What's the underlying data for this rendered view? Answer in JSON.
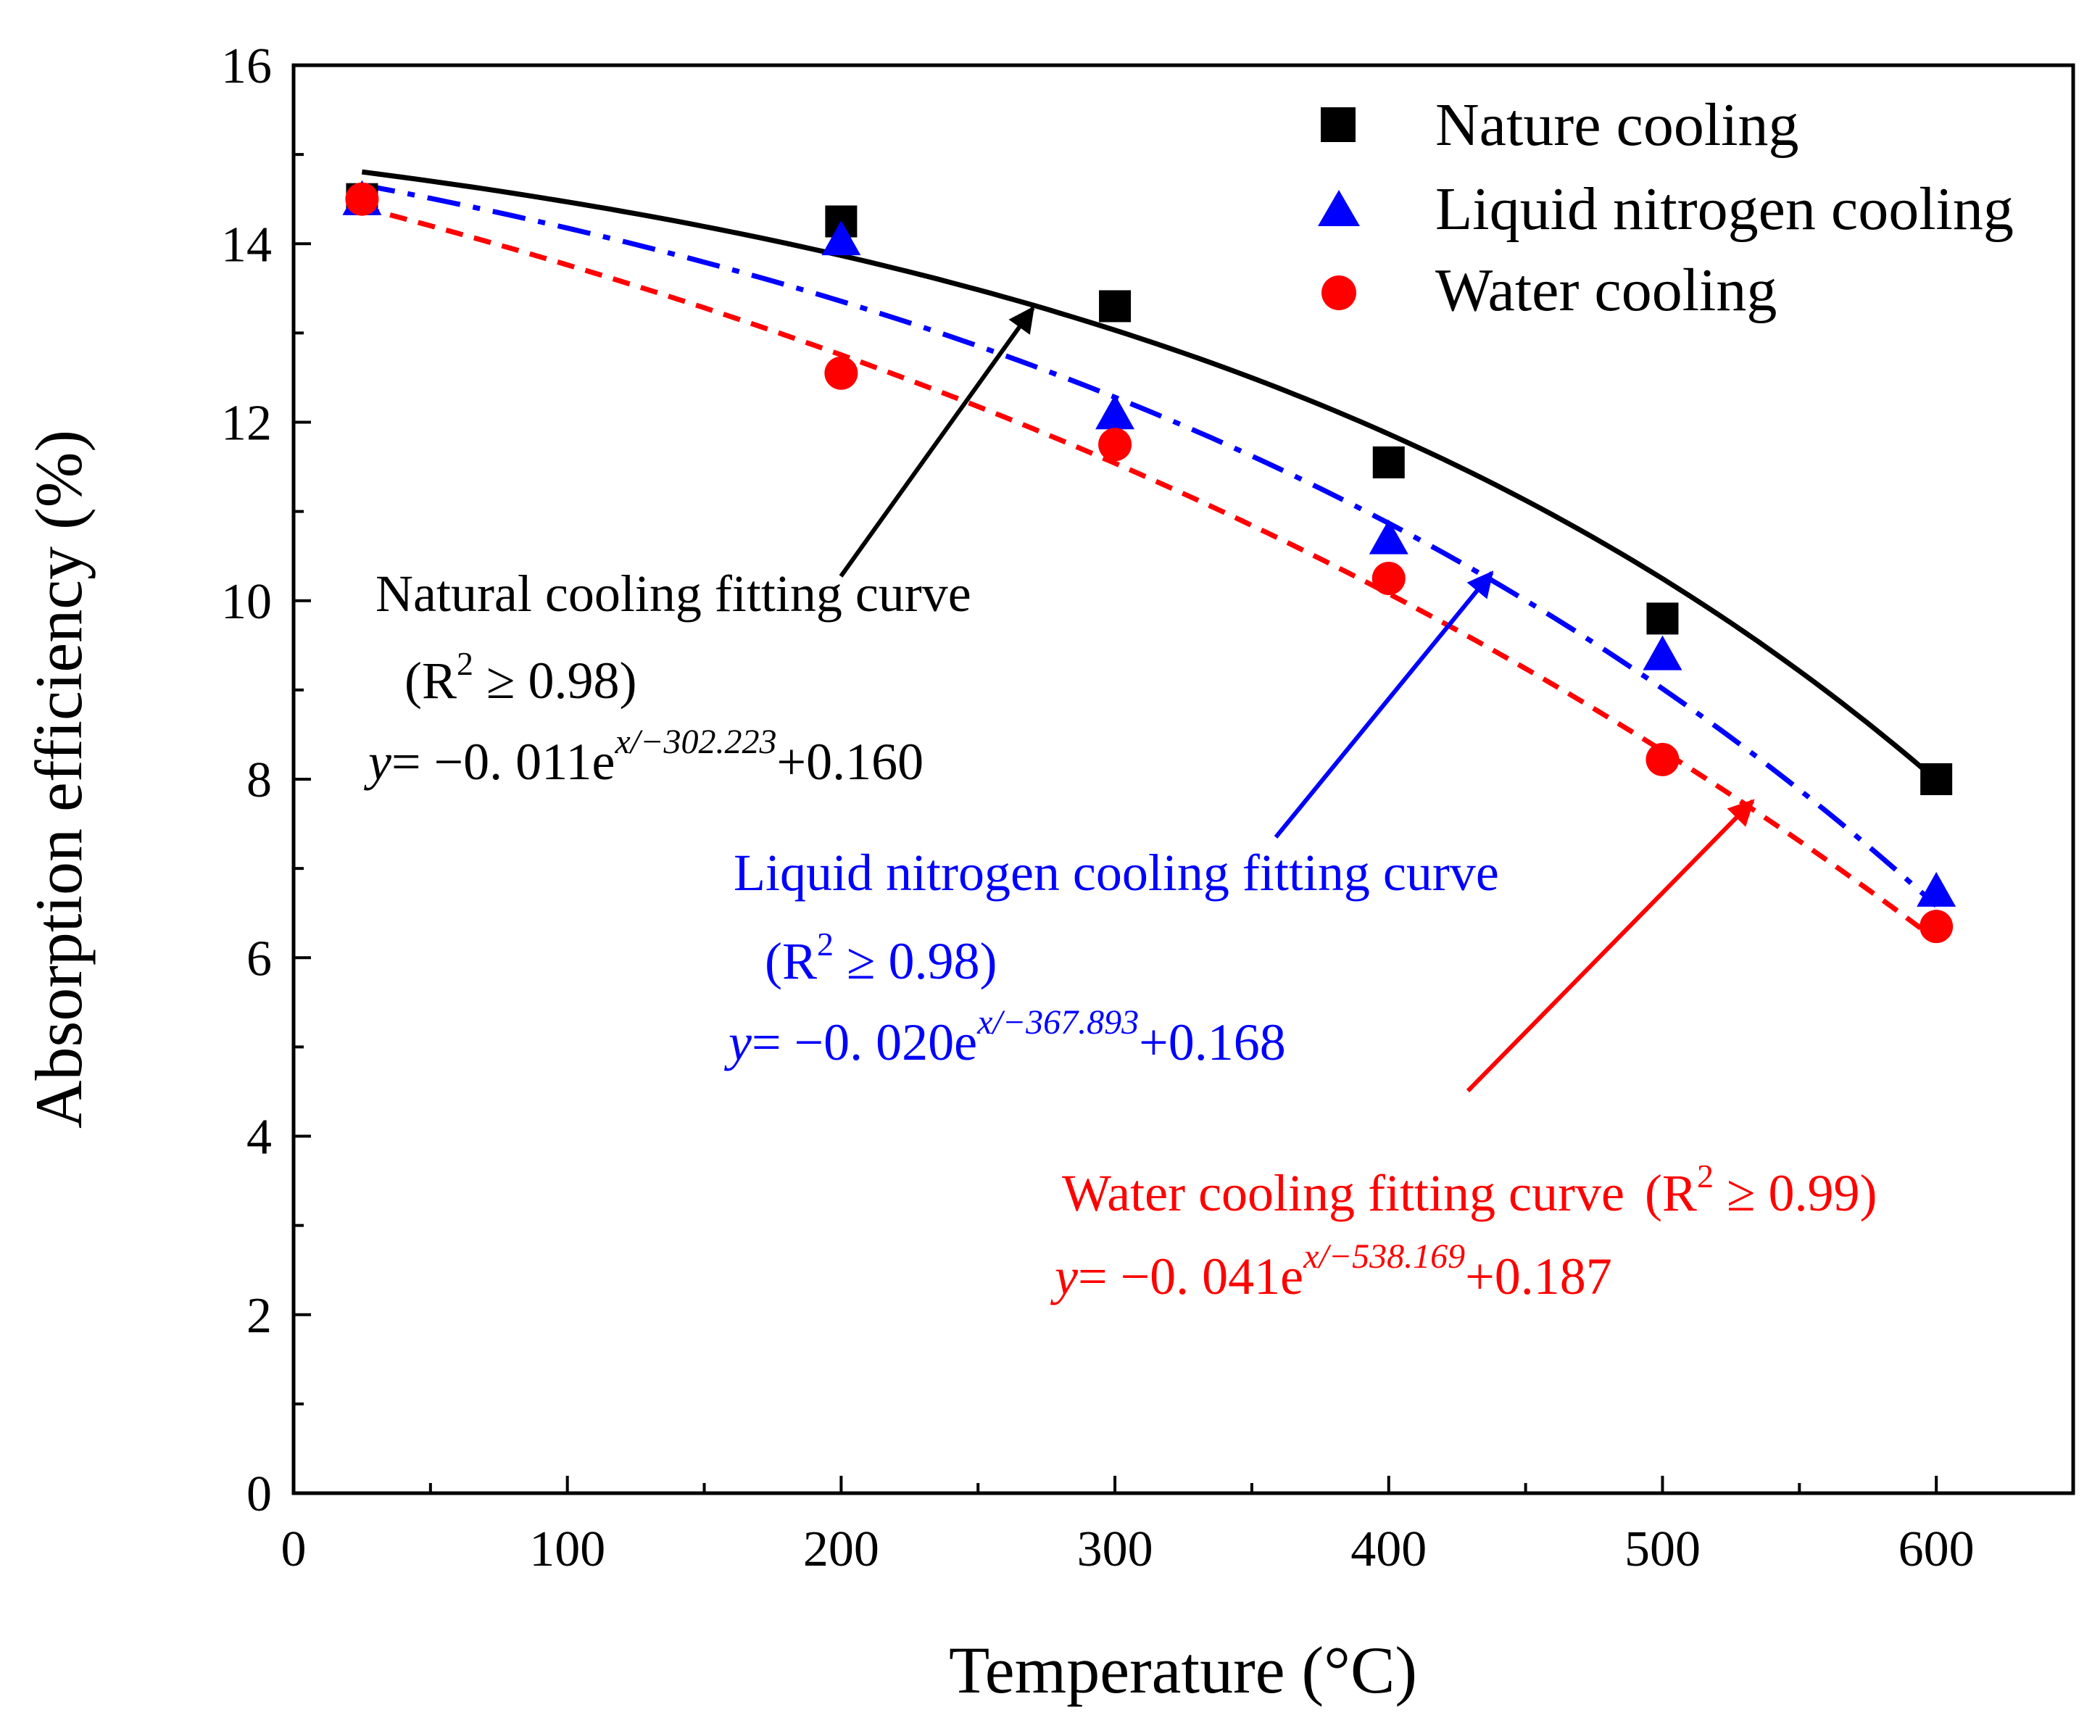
{
  "chart_data": {
    "type": "scatter",
    "xlabel": "Temperature (°C)",
    "ylabel": "Absorption efficiency (%)",
    "xlim": [
      0,
      650
    ],
    "ylim": [
      0,
      16
    ],
    "x_ticks": [
      0,
      100,
      200,
      300,
      400,
      500,
      600
    ],
    "x_tick_labels": [
      "0",
      "100",
      "200",
      "300",
      "400",
      "500",
      "600"
    ],
    "y_ticks": [
      0,
      2,
      4,
      6,
      8,
      10,
      12,
      14,
      16
    ],
    "y_tick_labels": [
      "0",
      "2",
      "4",
      "6",
      "8",
      "10",
      "12",
      "14",
      "16"
    ],
    "legend_position": "top-right",
    "series": [
      {
        "name": "Nature cooling",
        "marker": "square",
        "line_style": "solid",
        "color": "#000000",
        "x": [
          25,
          200,
          300,
          400,
          500,
          600
        ],
        "values": [
          14.5,
          14.25,
          13.3,
          11.55,
          9.8,
          8.0
        ],
        "fit": {
          "a": 0.011,
          "t": 302.223,
          "c": 0.16
        }
      },
      {
        "name": "Liquid nitrogen cooling",
        "marker": "triangle",
        "line_style": "dashdot",
        "color": "#0000ff",
        "x": [
          25,
          200,
          300,
          400,
          500,
          600
        ],
        "values": [
          14.5,
          14.05,
          12.1,
          10.7,
          9.4,
          6.75
        ],
        "fit": {
          "a": 0.02,
          "t": 367.893,
          "c": 0.168
        }
      },
      {
        "name": "Water cooling",
        "marker": "circle",
        "line_style": "dashed",
        "color": "#ff0000",
        "x": [
          25,
          200,
          300,
          400,
          500,
          600
        ],
        "values": [
          14.5,
          12.55,
          11.75,
          10.25,
          8.22,
          6.35
        ],
        "fit": {
          "a": 0.041,
          "t": 538.169,
          "c": 0.187
        }
      }
    ],
    "annotations": [
      {
        "name": "natural",
        "color": "#000000",
        "title": "Natural cooling fitting curve",
        "r2_open": "(R",
        "r2_sup": "2",
        "r2_close": " ≥ 0.98)",
        "eq_var": "y",
        "eq_main": "= −0. 011e",
        "eq_sup": "x/−302.223",
        "eq_tail": "+0.160"
      },
      {
        "name": "liquid",
        "color": "#0000ff",
        "title": "Liquid nitrogen cooling fitting curve",
        "r2_open": "(R",
        "r2_sup": "2",
        "r2_close": " ≥ 0.98)",
        "eq_var": "y",
        "eq_main": "= −0. 020e",
        "eq_sup": "x/−367.893",
        "eq_tail": "+0.168"
      },
      {
        "name": "water",
        "color": "#ff0000",
        "title": "Water cooling fitting curve",
        "r2_open": "(R",
        "r2_sup": "2",
        "r2_close": " ≥ 0.99)",
        "eq_var": "y",
        "eq_main": "= −0. 041e",
        "eq_sup": "x/−538.169",
        "eq_tail": "+0.187"
      }
    ]
  }
}
